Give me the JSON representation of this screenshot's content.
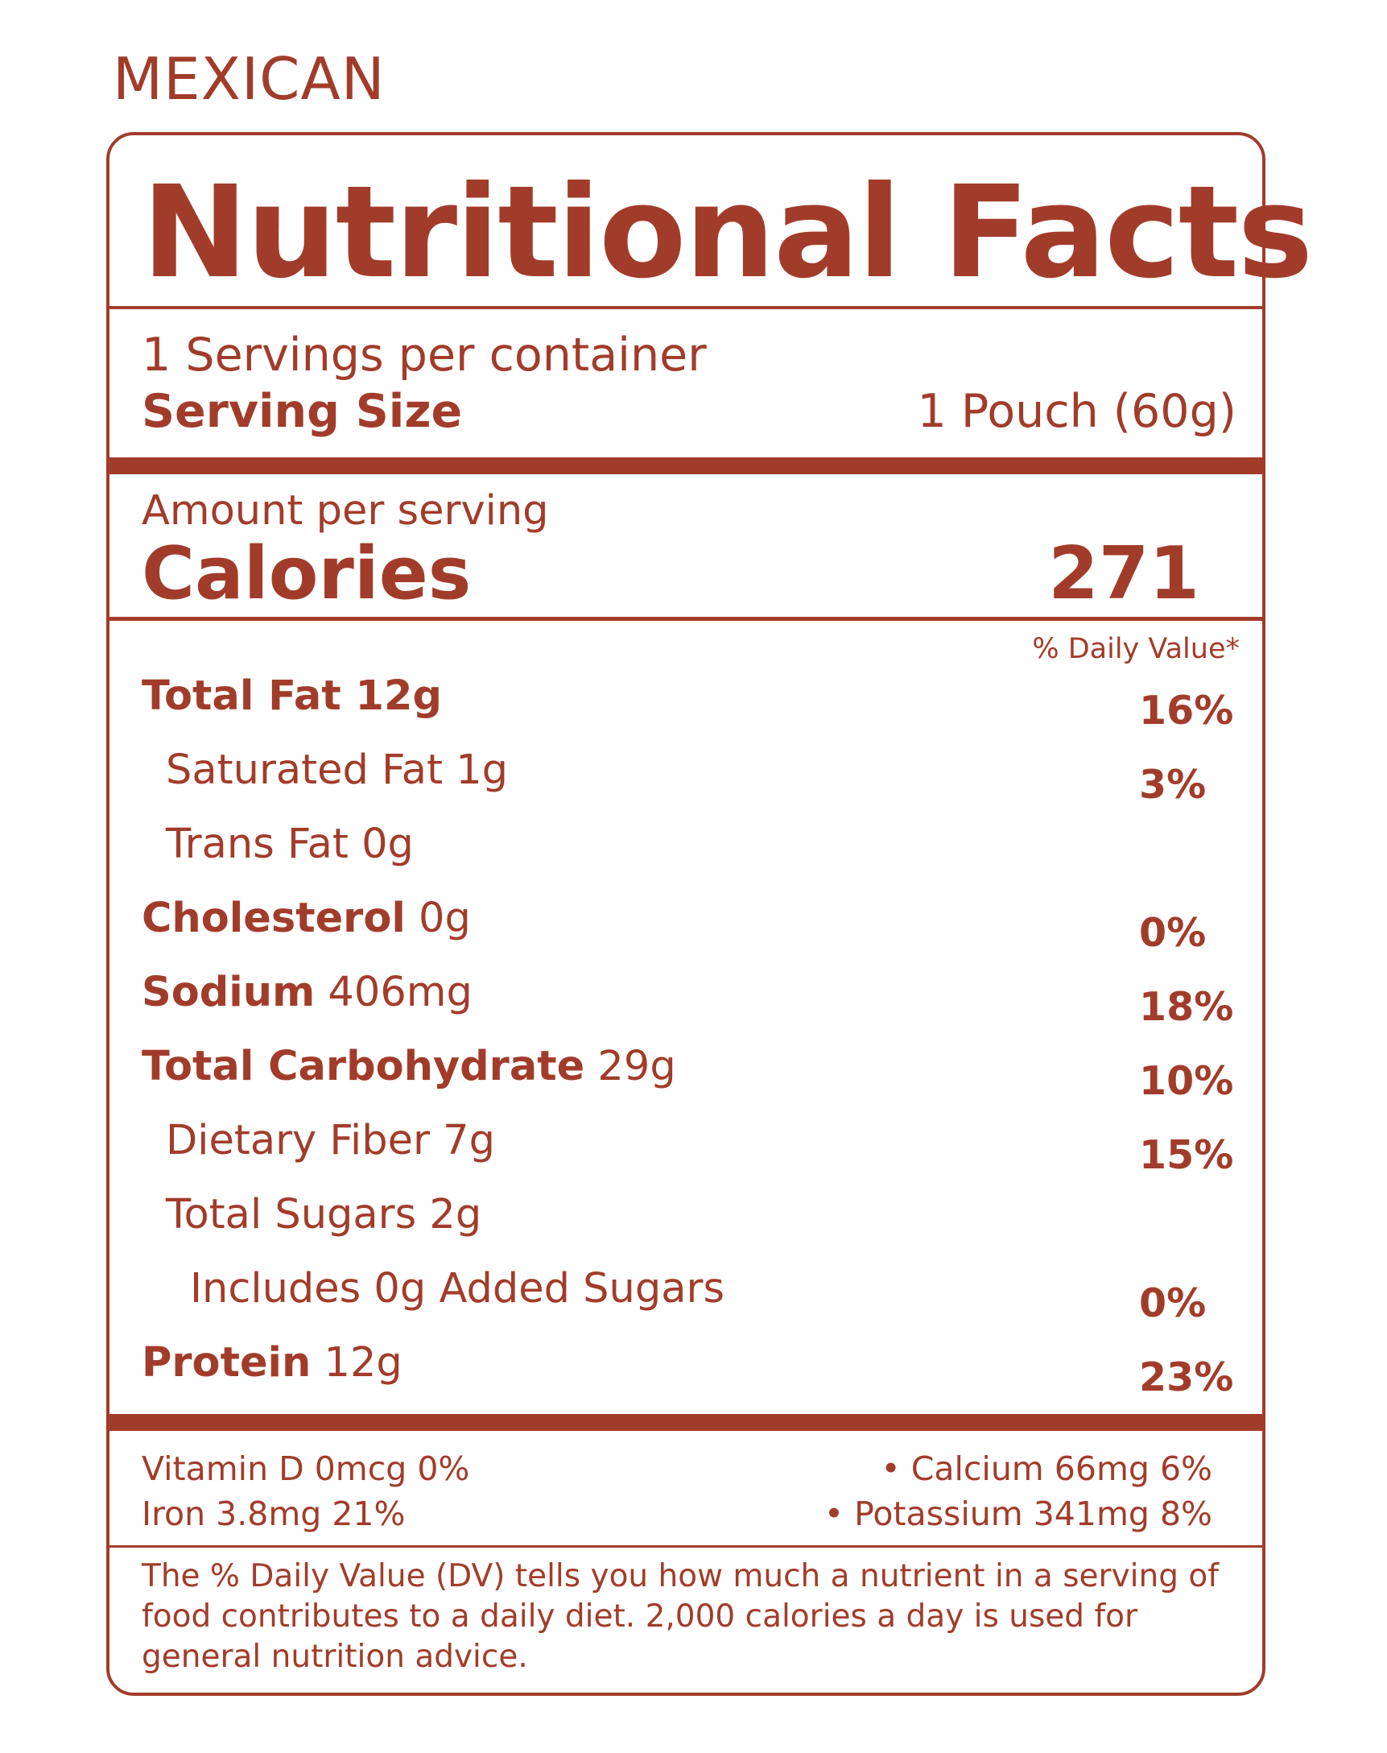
{
  "brand": "MEXICAN",
  "title": "Nutritional Facts",
  "servings_per_container": "1 Servings per container",
  "serving_size_label": "Serving Size",
  "serving_size_value": "1 Pouch (60g)",
  "amount_per_serving": "Amount per serving",
  "calories_label": "Calories",
  "calories_value": "271",
  "daily_value_header": "% Daily Value*",
  "nutrients": [
    {
      "bold": "Total Fat 12g",
      "amount": "",
      "dv": "16%"
    },
    {
      "bold": "",
      "amount": "Saturated Fat 1g",
      "dv": "3%"
    },
    {
      "bold": "",
      "amount": "Trans Fat 0g",
      "dv": ""
    },
    {
      "bold": "Cholesterol",
      "amount": " 0g",
      "dv": "0%"
    },
    {
      "bold": "Sodium",
      "amount": " 406mg",
      "dv": "18%"
    },
    {
      "bold": "Total Carbohydrate",
      "amount": " 29g",
      "dv": "10%"
    },
    {
      "bold": "",
      "amount": "Dietary Fiber 7g",
      "dv": "15%"
    },
    {
      "bold": "",
      "amount": "Total Sugars 2g",
      "dv": ""
    },
    {
      "bold": "",
      "amount": "Includes 0g Added Sugars",
      "dv": "0%"
    },
    {
      "bold": "Protein",
      "amount": " 12g",
      "dv": "23%"
    }
  ],
  "vitamins": {
    "vitamin_d": "Vitamin D 0mcg 0%",
    "calcium": "• Calcium 66mg 6%",
    "iron": "Iron 3.8mg 21%",
    "potassium": "• Potassium 341mg 8%"
  },
  "footnote": "The % Daily Value (DV) tells you how much a nutrient in a serving of food contributes to a daily diet. 2,000 calories a day is used for general nutrition advice.",
  "colors": {
    "accent": "#a23c2a",
    "background": "#ffffff"
  }
}
